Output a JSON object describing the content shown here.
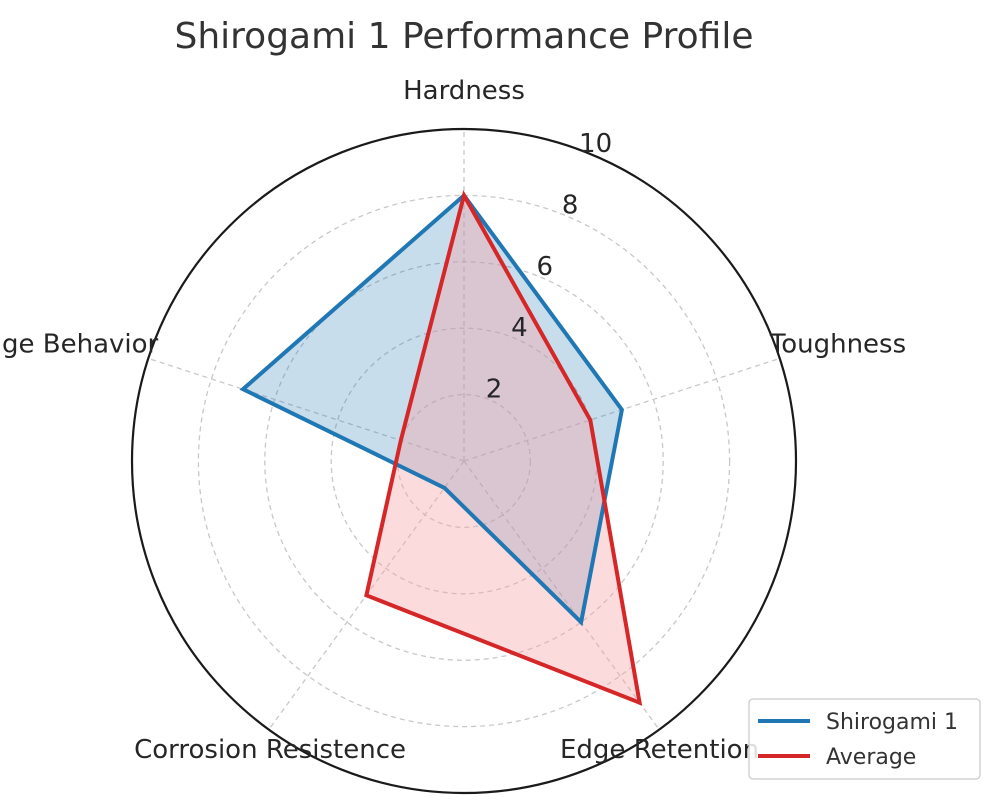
{
  "chart_data": {
    "type": "radar",
    "title": "Shirogami 1 Performance Profile",
    "axes": [
      "Hardness",
      "Toughness",
      "Edge Retention",
      "Corrosion Resistence",
      "Edge Behavior"
    ],
    "rlim": [
      0,
      10
    ],
    "rticks": [
      2,
      4,
      6,
      8,
      10
    ],
    "grid": true,
    "legend_position": "bottom-right",
    "series": [
      {
        "name": "Shirogami 1",
        "values": [
          8,
          5,
          6,
          1,
          7
        ],
        "color": "#1f77b4",
        "fill": "#1f77b4"
      },
      {
        "name": "Average",
        "values": [
          8,
          4,
          9,
          5,
          2
        ],
        "color": "#d62728",
        "fill": "#f4a4a8"
      }
    ]
  }
}
